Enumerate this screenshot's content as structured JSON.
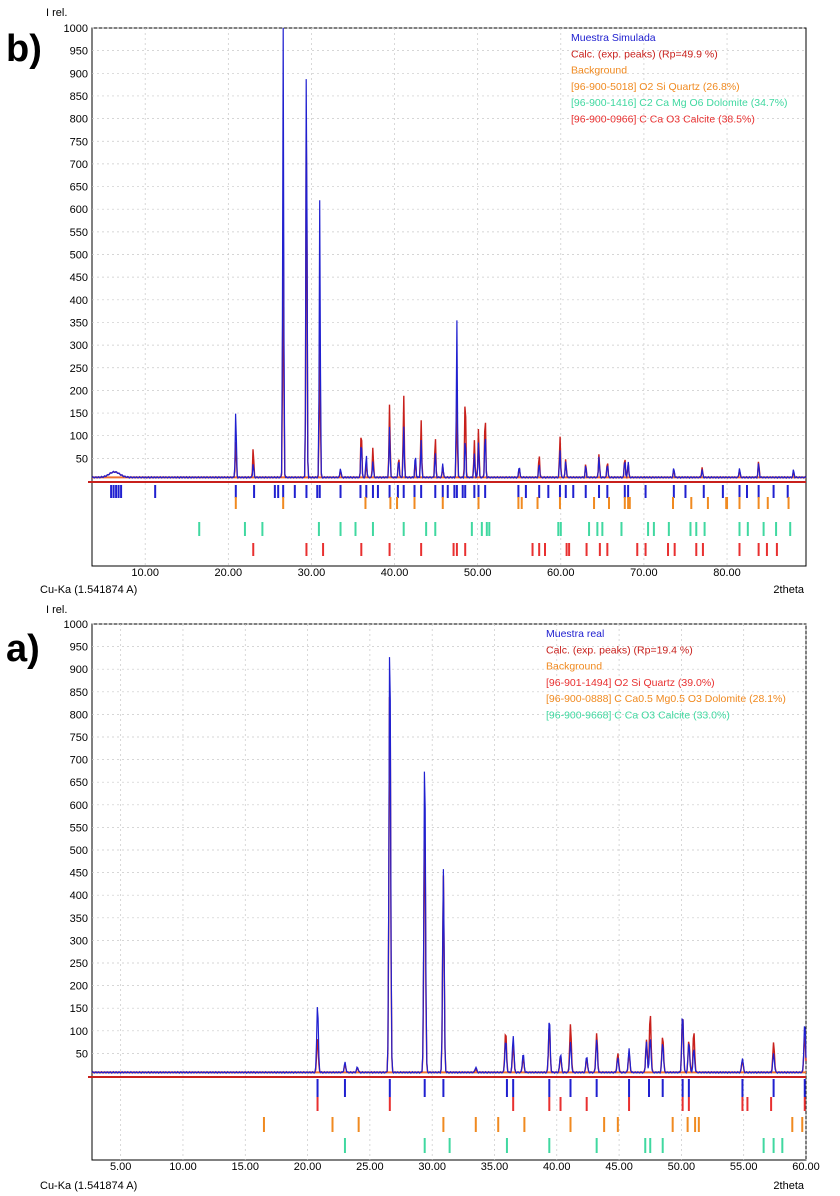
{
  "colors": {
    "measured": "#2020d0",
    "calc": "#c8201c",
    "background": "#f08a20",
    "quartz_sim": "#f08a20",
    "dolomite_sim": "#40d8a0",
    "calcite_sim": "#e83030",
    "quartz_real": "#e83030",
    "dolomite_real": "#f08a20",
    "calcite_real": "#40d8a0",
    "bg_line": "#f07030",
    "grid": "#c8c8c8"
  },
  "chart_data": [
    {
      "panel_label": "b)",
      "type": "line",
      "ylabel": "I rel.",
      "xlabel": "2theta",
      "radiation_label": "Cu-Ka (1.541874 A)",
      "xlim": [
        3.6,
        89.5
      ],
      "ylim": [
        0,
        1000
      ],
      "xticks": [
        "10.00",
        "20.00",
        "30.00",
        "40.00",
        "50.00",
        "60.00",
        "70.00",
        "80.00"
      ],
      "yticks": [
        "50",
        "100",
        "150",
        "200",
        "250",
        "300",
        "350",
        "400",
        "450",
        "500",
        "550",
        "600",
        "650",
        "700",
        "750",
        "800",
        "850",
        "900",
        "950",
        "1000"
      ],
      "legend_position": "top-right",
      "legend": [
        {
          "label": "Muestra Simulada",
          "color": "#2020d0"
        },
        {
          "label": "Calc. (exp. peaks) (Rp=49.9 %)",
          "color": "#c8201c"
        },
        {
          "label": "Background",
          "color": "#f08a20"
        },
        {
          "label": "[96-900-5018] O2 Si Quartz (26.8%)",
          "color": "#f08a20"
        },
        {
          "label": "[96-900-1416] C2 Ca Mg O6 Dolomite (34.7%)",
          "color": "#40d8a0"
        },
        {
          "label": "[96-900-0966] C Ca O3 Calcite (38.5%)",
          "color": "#e83030"
        }
      ],
      "baseline": 8,
      "peaks": [
        {
          "x": 20.9,
          "measured": 160,
          "calc": 92
        },
        {
          "x": 23.0,
          "measured": 40,
          "calc": 75
        },
        {
          "x": 26.6,
          "measured": 1000,
          "calc": 600
        },
        {
          "x": 29.4,
          "measured": 990,
          "calc": 875
        },
        {
          "x": 31.0,
          "measured": 625,
          "calc": 330
        },
        {
          "x": 33.5,
          "measured": 30,
          "calc": 25
        },
        {
          "x": 36.0,
          "measured": 95,
          "calc": 120
        },
        {
          "x": 36.6,
          "measured": 60,
          "calc": 40
        },
        {
          "x": 37.4,
          "measured": 45,
          "calc": 75
        },
        {
          "x": 39.4,
          "measured": 120,
          "calc": 170
        },
        {
          "x": 40.5,
          "measured": 50,
          "calc": 55
        },
        {
          "x": 41.1,
          "measured": 120,
          "calc": 190
        },
        {
          "x": 42.5,
          "measured": 60,
          "calc": 45
        },
        {
          "x": 43.2,
          "measured": 90,
          "calc": 135
        },
        {
          "x": 44.9,
          "measured": 65,
          "calc": 100
        },
        {
          "x": 45.8,
          "measured": 40,
          "calc": 35
        },
        {
          "x": 47.5,
          "measured": 355,
          "calc": 195
        },
        {
          "x": 48.5,
          "measured": 100,
          "calc": 200
        },
        {
          "x": 49.6,
          "measured": 60,
          "calc": 90
        },
        {
          "x": 50.1,
          "measured": 90,
          "calc": 120
        },
        {
          "x": 50.9,
          "measured": 110,
          "calc": 155
        },
        {
          "x": 55.0,
          "measured": 35,
          "calc": 30
        },
        {
          "x": 57.4,
          "measured": 40,
          "calc": 60
        },
        {
          "x": 59.9,
          "measured": 70,
          "calc": 100
        },
        {
          "x": 60.6,
          "measured": 45,
          "calc": 50
        },
        {
          "x": 63.0,
          "measured": 35,
          "calc": 40
        },
        {
          "x": 64.6,
          "measured": 55,
          "calc": 60
        },
        {
          "x": 65.6,
          "measured": 40,
          "calc": 45
        },
        {
          "x": 67.7,
          "measured": 50,
          "calc": 55
        },
        {
          "x": 68.1,
          "measured": 45,
          "calc": 40
        },
        {
          "x": 73.6,
          "measured": 30,
          "calc": 25
        },
        {
          "x": 77.0,
          "measured": 25,
          "calc": 30
        },
        {
          "x": 81.5,
          "measured": 30,
          "calc": 25
        },
        {
          "x": 83.8,
          "measured": 40,
          "calc": 45
        },
        {
          "x": 88.0,
          "measured": 25,
          "calc": 20
        }
      ],
      "tick_rows": [
        {
          "phase": "measured",
          "color": "#2020d0",
          "x": [
            5.9,
            6.2,
            6.5,
            6.8,
            7.1,
            11.2,
            20.9,
            23.1,
            25.6,
            26.0,
            26.6,
            28.0,
            29.4,
            30.7,
            31.0,
            33.5,
            35.9,
            36.6,
            37.4,
            38.0,
            39.4,
            40.4,
            41.1,
            42.4,
            43.2,
            44.9,
            45.8,
            46.4,
            47.2,
            47.5,
            48.2,
            48.5,
            49.6,
            50.1,
            50.9,
            54.9,
            55.8,
            57.4,
            58.5,
            59.9,
            60.6,
            61.5,
            63.0,
            64.6,
            65.6,
            67.7,
            68.1,
            70.2,
            73.6,
            75.0,
            77.2,
            79.5,
            81.5,
            82.4,
            83.8,
            85.6,
            87.3
          ]
        },
        {
          "phase": "quartz",
          "color": "#f08a20",
          "x": [
            20.9,
            26.6,
            36.5,
            39.5,
            40.3,
            42.4,
            45.8,
            50.1,
            54.9,
            55.3,
            57.2,
            59.9,
            64.0,
            65.8,
            67.7,
            68.1,
            68.3,
            73.5,
            75.7,
            77.7,
            79.9,
            80.0,
            81.5,
            83.8,
            84.9,
            87.4
          ]
        },
        {
          "phase": "dolomite",
          "color": "#40d8a0",
          "x": [
            16.5,
            22.0,
            24.1,
            30.9,
            33.5,
            35.3,
            37.4,
            41.1,
            43.8,
            44.9,
            49.3,
            50.5,
            51.1,
            51.4,
            59.7,
            60.0,
            63.4,
            64.4,
            65.0,
            67.3,
            70.5,
            71.2,
            73.0,
            75.6,
            76.3,
            77.3,
            81.5,
            82.5,
            84.4,
            85.9,
            87.6
          ]
        },
        {
          "phase": "calcite",
          "color": "#e83030",
          "x": [
            23.0,
            29.4,
            31.4,
            36.0,
            39.4,
            43.2,
            47.1,
            47.5,
            48.5,
            56.6,
            57.4,
            58.1,
            60.7,
            61.0,
            63.1,
            64.7,
            65.6,
            69.2,
            70.2,
            72.9,
            73.7,
            76.3,
            77.1,
            81.5,
            83.8,
            84.8,
            86.0
          ]
        }
      ]
    },
    {
      "panel_label": "a)",
      "type": "line",
      "ylabel": "I rel.",
      "xlabel": "2theta",
      "radiation_label": "Cu-Ka (1.541874 A)",
      "xlim": [
        2.7,
        60.0
      ],
      "ylim": [
        0,
        1000
      ],
      "xticks": [
        "5.00",
        "10.00",
        "15.00",
        "20.00",
        "25.00",
        "30.00",
        "35.00",
        "40.00",
        "45.00",
        "50.00",
        "55.00",
        "60.00"
      ],
      "yticks": [
        "50",
        "100",
        "150",
        "200",
        "250",
        "300",
        "350",
        "400",
        "450",
        "500",
        "550",
        "600",
        "650",
        "700",
        "750",
        "800",
        "850",
        "900",
        "950",
        "1000"
      ],
      "legend_position": "top-right",
      "legend": [
        {
          "label": "Muestra real",
          "color": "#2020d0"
        },
        {
          "label": "Calc. (exp. peaks) (Rp=19.4 %)",
          "color": "#c8201c"
        },
        {
          "label": "Background",
          "color": "#f08a20"
        },
        {
          "label": "[96-901-1494] O2 Si Quartz (39.0%)",
          "color": "#e83030"
        },
        {
          "label": "[96-900-0888] C Ca0.5 Mg0.5 O3 Dolomite (28.1%)",
          "color": "#f08a20"
        },
        {
          "label": "[96-900-9668] C Ca O3 Calcite (33.0%)",
          "color": "#40d8a0"
        }
      ],
      "baseline": 8,
      "peaks": [
        {
          "x": 20.8,
          "measured": 160,
          "calc": 85
        },
        {
          "x": 23.0,
          "measured": 30,
          "calc": 25
        },
        {
          "x": 24.0,
          "measured": 20,
          "calc": 18
        },
        {
          "x": 26.6,
          "measured": 1000,
          "calc": 905
        },
        {
          "x": 29.4,
          "measured": 720,
          "calc": 590
        },
        {
          "x": 30.9,
          "measured": 460,
          "calc": 445
        },
        {
          "x": 33.5,
          "measured": 20,
          "calc": 15
        },
        {
          "x": 35.9,
          "measured": 80,
          "calc": 100
        },
        {
          "x": 36.5,
          "measured": 90,
          "calc": 70
        },
        {
          "x": 37.3,
          "measured": 50,
          "calc": 40
        },
        {
          "x": 39.4,
          "measured": 130,
          "calc": 115
        },
        {
          "x": 40.3,
          "measured": 50,
          "calc": 45
        },
        {
          "x": 41.1,
          "measured": 75,
          "calc": 115
        },
        {
          "x": 42.4,
          "measured": 45,
          "calc": 40
        },
        {
          "x": 43.2,
          "measured": 80,
          "calc": 95
        },
        {
          "x": 44.9,
          "measured": 40,
          "calc": 50
        },
        {
          "x": 45.8,
          "measured": 60,
          "calc": 50
        },
        {
          "x": 47.2,
          "measured": 75,
          "calc": 80
        },
        {
          "x": 47.5,
          "measured": 85,
          "calc": 140
        },
        {
          "x": 48.5,
          "measured": 75,
          "calc": 90
        },
        {
          "x": 50.1,
          "measured": 140,
          "calc": 140
        },
        {
          "x": 50.6,
          "measured": 75,
          "calc": 80
        },
        {
          "x": 51.0,
          "measured": 60,
          "calc": 100
        },
        {
          "x": 54.9,
          "measured": 40,
          "calc": 35
        },
        {
          "x": 57.4,
          "measured": 50,
          "calc": 75
        },
        {
          "x": 59.9,
          "measured": 120,
          "calc": 95
        }
      ],
      "tick_rows": [
        {
          "phase": "measured",
          "color": "#2020d0",
          "x": [
            20.8,
            23.0,
            26.6,
            29.4,
            30.9,
            36.0,
            36.5,
            39.4,
            41.1,
            43.2,
            45.8,
            47.4,
            48.5,
            50.1,
            50.6,
            54.9,
            57.4,
            59.9
          ]
        },
        {
          "phase": "quartz",
          "color": "#e83030",
          "x": [
            20.8,
            26.6,
            36.5,
            39.4,
            40.3,
            42.4,
            45.8,
            50.1,
            50.6,
            54.9,
            55.3,
            57.2,
            59.9
          ]
        },
        {
          "phase": "dolomite",
          "color": "#f08a20",
          "x": [
            16.5,
            22.0,
            24.1,
            30.9,
            33.5,
            35.3,
            37.4,
            41.1,
            43.8,
            44.9,
            49.3,
            50.5,
            51.1,
            51.4,
            58.9,
            59.7
          ]
        },
        {
          "phase": "calcite",
          "color": "#40d8a0",
          "x": [
            23.0,
            29.4,
            31.4,
            36.0,
            39.4,
            43.2,
            47.1,
            47.5,
            48.5,
            56.6,
            57.4,
            58.1
          ]
        }
      ]
    }
  ]
}
